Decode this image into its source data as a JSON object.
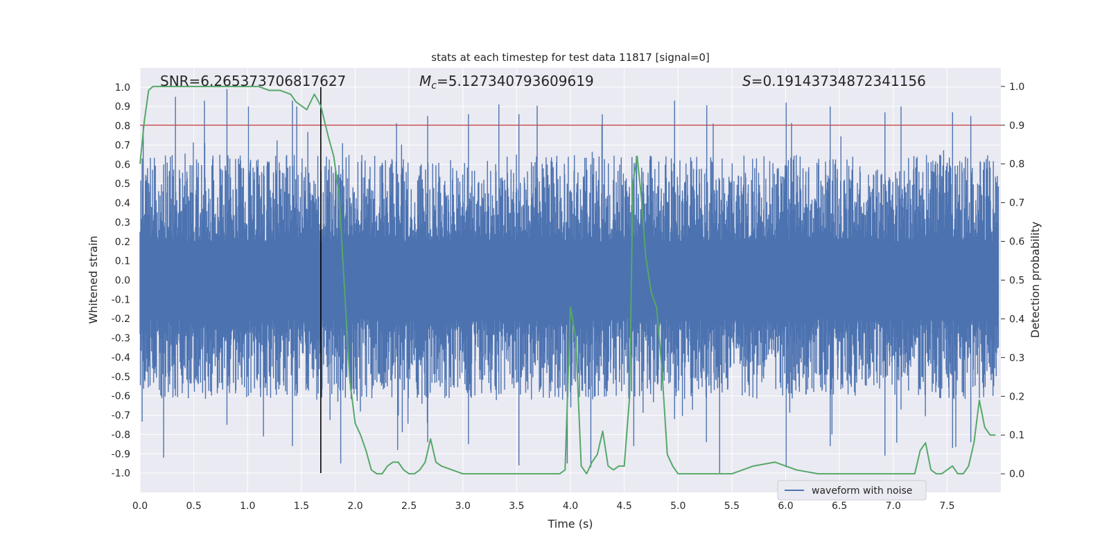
{
  "chart_data": {
    "type": "line",
    "title": "stats at each timestep for test data 11817 [signal=0]",
    "xlabel": "Time (s)",
    "ylabel": "Whitened strain",
    "y2label": "Detection probability",
    "xlim": [
      0.0,
      8.0
    ],
    "ylim": [
      -1.1,
      1.1
    ],
    "y2lim": [
      -0.048,
      1.048
    ],
    "xticks": [
      "0.0",
      "0.5",
      "1.0",
      "1.5",
      "2.0",
      "2.5",
      "3.0",
      "3.5",
      "4.0",
      "4.5",
      "5.0",
      "5.5",
      "6.0",
      "6.5",
      "7.0",
      "7.5"
    ],
    "xtick_values": [
      0,
      0.5,
      1,
      1.5,
      2,
      2.5,
      3,
      3.5,
      4,
      4.5,
      5,
      5.5,
      6,
      6.5,
      7,
      7.5
    ],
    "yticks": [
      "1.0",
      "0.9",
      "0.8",
      "0.7",
      "0.6",
      "0.5",
      "0.4",
      "0.3",
      "0.2",
      "0.1",
      "0.0",
      "-0.1",
      "-0.2",
      "-0.3",
      "-0.4",
      "-0.5",
      "-0.6",
      "-0.7",
      "-0.8",
      "-0.9",
      "-1.0"
    ],
    "ytick_values": [
      1,
      0.9,
      0.8,
      0.7,
      0.6,
      0.5,
      0.4,
      0.3,
      0.2,
      0.1,
      0,
      -0.1,
      -0.2,
      -0.3,
      -0.4,
      -0.5,
      -0.6,
      -0.7,
      -0.8,
      -0.9,
      -1
    ],
    "y2ticks": [
      "1.0",
      "0.9",
      "0.8",
      "0.7",
      "0.6",
      "0.5",
      "0.4",
      "0.3",
      "0.2",
      "0.1",
      "0.0"
    ],
    "y2tick_values": [
      1,
      0.9,
      0.8,
      0.7,
      0.6,
      0.5,
      0.4,
      0.3,
      0.2,
      0.1,
      0
    ],
    "annotations": {
      "snr": "SNR=6.265373706817627",
      "mc_symbol": "M",
      "mc_sub": "c",
      "mc_value": "=5.127340793609619",
      "s_symbol": "S",
      "s_value": "=0.19143734872341156"
    },
    "legend": {
      "label": "waveform with noise",
      "position": "lower-right"
    },
    "threshold": {
      "value": 0.9,
      "axis": "right",
      "color": "#c44e52"
    },
    "marker_line": {
      "x": 1.68,
      "color": "#000000"
    },
    "waveform": {
      "name": "waveform with noise",
      "color": "#4c72b0",
      "samples": 2400,
      "envelope_typical": [
        -0.42,
        0.42
      ],
      "spikes": [
        [
          0.03,
          0.8,
          -0.42
        ],
        [
          0.22,
          0.6,
          -0.92
        ],
        [
          0.33,
          0.95,
          -0.6
        ],
        [
          0.6,
          0.93,
          -0.52
        ],
        [
          0.81,
          0.99,
          -0.75
        ],
        [
          1.01,
          0.9,
          -0.6
        ],
        [
          1.15,
          0.55,
          -0.81
        ],
        [
          1.42,
          0.93,
          -0.86
        ],
        [
          1.46,
          0.9,
          -0.6
        ],
        [
          1.87,
          0.55,
          -0.95
        ],
        [
          2.4,
          0.55,
          -0.88
        ],
        [
          2.68,
          0.85,
          -0.84
        ],
        [
          3.06,
          0.86,
          -0.85
        ],
        [
          3.53,
          0.86,
          -0.96
        ],
        [
          3.98,
          0.5,
          -0.95
        ],
        [
          4.2,
          0.6,
          -0.97
        ],
        [
          4.6,
          0.55,
          -0.86
        ],
        [
          4.98,
          0.93,
          -0.72
        ],
        [
          5.4,
          0.52,
          -1.0
        ],
        [
          6.02,
          0.92,
          -0.97
        ],
        [
          6.43,
          0.9,
          -0.86
        ],
        [
          6.94,
          0.87,
          -0.91
        ],
        [
          7.09,
          0.9,
          -0.67
        ],
        [
          7.57,
          0.87,
          -0.87
        ],
        [
          7.74,
          0.85,
          -0.84
        ]
      ]
    },
    "probability": {
      "name": "detection probability",
      "color": "#55a868",
      "axis": "right",
      "x": [
        0.0,
        0.04,
        0.08,
        0.12,
        0.2,
        0.3,
        0.5,
        0.7,
        0.9,
        1.1,
        1.2,
        1.3,
        1.4,
        1.45,
        1.5,
        1.55,
        1.62,
        1.68,
        1.75,
        1.8,
        1.85,
        1.9,
        1.95,
        2.0,
        2.05,
        2.1,
        2.15,
        2.2,
        2.25,
        2.3,
        2.35,
        2.4,
        2.45,
        2.5,
        2.55,
        2.6,
        2.65,
        2.7,
        2.75,
        2.8,
        2.9,
        3.0,
        3.2,
        3.4,
        3.5,
        3.6,
        3.8,
        3.9,
        3.95,
        4.0,
        4.05,
        4.1,
        4.15,
        4.2,
        4.25,
        4.3,
        4.35,
        4.4,
        4.45,
        4.5,
        4.55,
        4.58,
        4.62,
        4.66,
        4.7,
        4.75,
        4.8,
        4.85,
        4.9,
        4.95,
        5.0,
        5.5,
        5.6,
        5.7,
        5.9,
        6.0,
        6.1,
        6.3,
        6.6,
        6.9,
        7.1,
        7.15,
        7.2,
        7.25,
        7.3,
        7.35,
        7.4,
        7.45,
        7.5,
        7.55,
        7.6,
        7.65,
        7.7,
        7.75,
        7.8,
        7.85,
        7.9,
        7.95
      ],
      "y": [
        0.8,
        0.91,
        0.99,
        1.0,
        1.0,
        1.0,
        1.0,
        1.0,
        1.0,
        1.0,
        0.99,
        0.99,
        0.98,
        0.96,
        0.95,
        0.94,
        0.98,
        0.95,
        0.87,
        0.82,
        0.72,
        0.48,
        0.24,
        0.13,
        0.1,
        0.06,
        0.01,
        0.0,
        0.0,
        0.02,
        0.03,
        0.03,
        0.01,
        0.0,
        0.0,
        0.01,
        0.03,
        0.09,
        0.03,
        0.02,
        0.01,
        0.0,
        0.0,
        0.0,
        0.0,
        0.0,
        0.0,
        0.0,
        0.01,
        0.43,
        0.35,
        0.02,
        0.0,
        0.03,
        0.05,
        0.11,
        0.02,
        0.01,
        0.02,
        0.02,
        0.2,
        0.75,
        0.82,
        0.71,
        0.56,
        0.47,
        0.43,
        0.27,
        0.05,
        0.02,
        0.0,
        0.0,
        0.01,
        0.02,
        0.03,
        0.02,
        0.01,
        0.0,
        0.0,
        0.0,
        0.0,
        0.0,
        0.0,
        0.06,
        0.08,
        0.01,
        0.0,
        0.0,
        0.01,
        0.02,
        0.0,
        0.0,
        0.02,
        0.08,
        0.19,
        0.12,
        0.1,
        0.1
      ]
    }
  }
}
